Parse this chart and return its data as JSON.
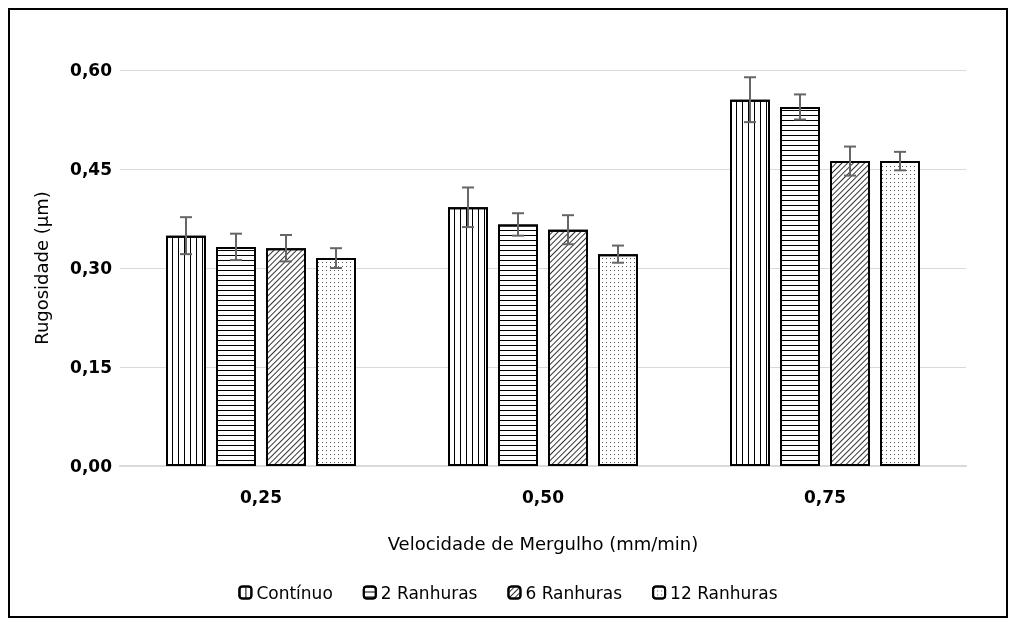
{
  "chart_data": {
    "type": "bar",
    "xlabel": "Velocidade de Mergulho (mm/min)",
    "ylabel": "Rugosidade (µm)",
    "categories": [
      "0,25",
      "0,50",
      "0,75"
    ],
    "series": [
      {
        "name": "Contínuo",
        "color": "#ffffff",
        "values": [
          0.349,
          0.392,
          0.555
        ],
        "errors": [
          0.028,
          0.03,
          0.034
        ]
      },
      {
        "name": "2 Ranhuras",
        "color": "#ffffff",
        "values": [
          0.332,
          0.366,
          0.544
        ],
        "errors": [
          0.02,
          0.017,
          0.019
        ]
      },
      {
        "name": "6 Ranhuras",
        "color": "#ffffff",
        "values": [
          0.33,
          0.358,
          0.462
        ],
        "errors": [
          0.02,
          0.022,
          0.022
        ]
      },
      {
        "name": "12 Ranhuras",
        "color": "#ffffff",
        "values": [
          0.315,
          0.321,
          0.462
        ],
        "errors": [
          0.015,
          0.013,
          0.014
        ]
      }
    ],
    "ylim": [
      0,
      0.6
    ],
    "yticks": [
      {
        "value": 0,
        "label": "0,00"
      },
      {
        "value": 0.15,
        "label": "0,15"
      },
      {
        "value": 0.3,
        "label": "0,30"
      },
      {
        "value": 0.45,
        "label": "0,45"
      },
      {
        "value": 0.6,
        "label": "0,60"
      }
    ],
    "grid": "y",
    "legend": "bottom"
  }
}
